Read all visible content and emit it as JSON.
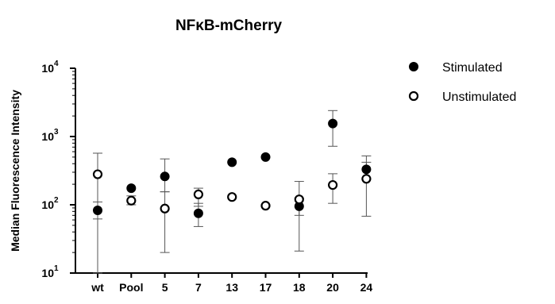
{
  "chart_data": {
    "type": "scatter",
    "title": "NFκB-mCherry",
    "xlabel": "",
    "ylabel": "Median Fluorescence Intensity",
    "yscale": "log",
    "ylim": [
      10,
      10000
    ],
    "yticks": [
      {
        "value": 10,
        "base": "10",
        "exp": "1"
      },
      {
        "value": 100,
        "base": "10",
        "exp": "2"
      },
      {
        "value": 1000,
        "base": "10",
        "exp": "3"
      },
      {
        "value": 10000,
        "base": "10",
        "exp": "4"
      }
    ],
    "categories": [
      "wt",
      "Pool",
      "5",
      "7",
      "13",
      "17",
      "18",
      "20",
      "24"
    ],
    "legend_position": "top-right",
    "series": [
      {
        "name": "Stimulated",
        "marker": "filled-circle",
        "color": "#000000",
        "values": [
          83,
          175,
          260,
          75,
          420,
          500,
          95,
          1550,
          330
        ],
        "error_low": [
          62,
          null,
          155,
          48,
          null,
          null,
          70,
          720,
          240
        ],
        "error_high": [
          110,
          null,
          470,
          105,
          null,
          null,
          125,
          2400,
          420
        ]
      },
      {
        "name": "Unstimulated",
        "marker": "open-circle",
        "color": "#000000",
        "values": [
          280,
          115,
          88,
          142,
          130,
          97,
          120,
          195,
          240
        ],
        "error_low": [
          10,
          100,
          20,
          95,
          null,
          null,
          21,
          105,
          68
        ],
        "error_high": [
          570,
          135,
          155,
          175,
          null,
          null,
          220,
          285,
          520
        ]
      }
    ]
  }
}
